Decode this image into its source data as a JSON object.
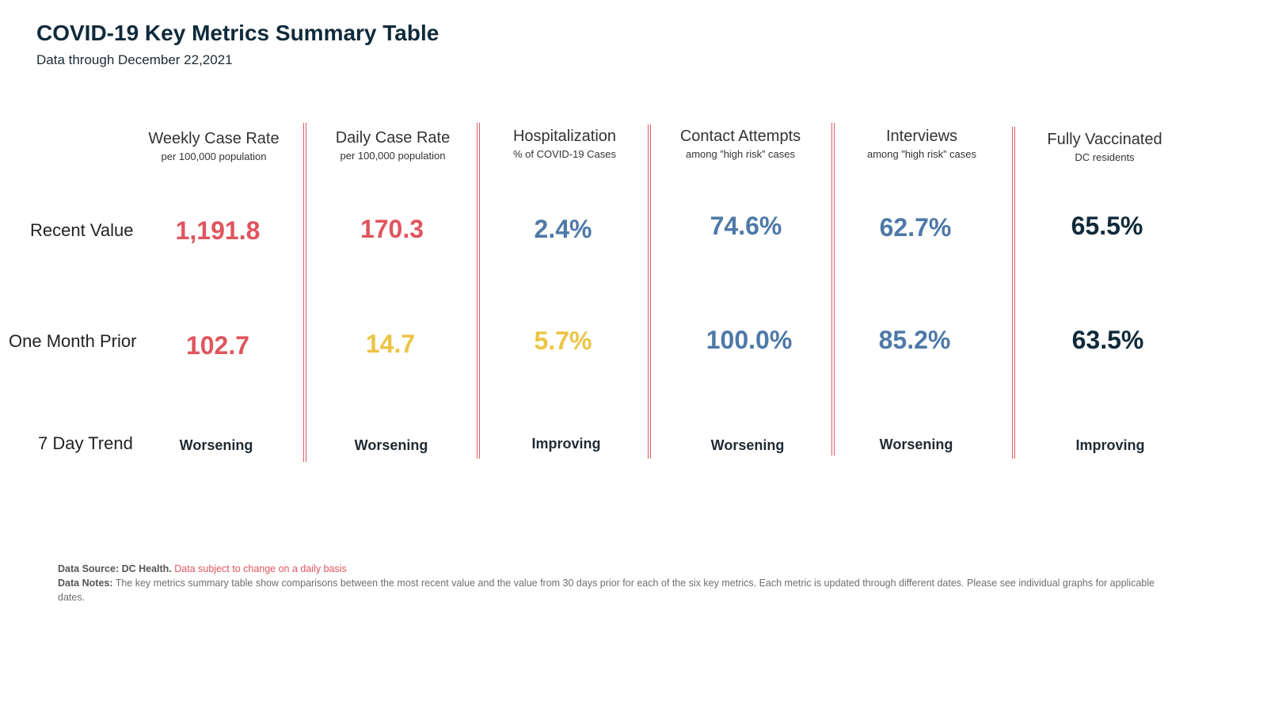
{
  "header": {
    "title": "COVID-19 Key Metrics Summary Table",
    "subtitle": "Data through December 22,2021"
  },
  "rows": {
    "recent": "Recent Value",
    "prior": "One Month Prior",
    "trend": "7 Day Trend"
  },
  "columns": [
    {
      "title": "Weekly Case Rate",
      "subtitle": "per 100,000 population",
      "recent": "1,191.8",
      "prior": "102.7",
      "trend": "Worsening",
      "recent_color": "#e0555e",
      "prior_color": "#e0555e"
    },
    {
      "title": "Daily Case Rate",
      "subtitle": "per 100,000 population",
      "recent": "170.3",
      "prior": "14.7",
      "trend": "Worsening",
      "recent_color": "#e0555e",
      "prior_color": "#ecc445"
    },
    {
      "title": "Hospitalization",
      "subtitle": "% of COVID-19 Cases",
      "recent": "2.4%",
      "prior": "5.7%",
      "trend": "Improving",
      "recent_color": "#4e79a7",
      "prior_color": "#ecc445"
    },
    {
      "title": "Contact Attempts",
      "subtitle": "among ”high risk” cases",
      "recent": "74.6%",
      "prior": "100.0%",
      "trend": "Worsening",
      "recent_color": "#4e79a7",
      "prior_color": "#4e79a7"
    },
    {
      "title": "Interviews",
      "subtitle": "among ”high risk” cases",
      "recent": "62.7%",
      "prior": "85.2%",
      "trend": "Worsening",
      "recent_color": "#4e79a7",
      "prior_color": "#4e79a7"
    },
    {
      "title": "Fully Vaccinated",
      "subtitle": "DC residents",
      "recent": "65.5%",
      "prior": "63.5%",
      "trend": "Improving",
      "recent_color": "#0f2a3a",
      "prior_color": "#0f2a3a"
    }
  ],
  "footer": {
    "source_label": "Data Source: DC Health.",
    "source_note": "Data subject to change on a daily basis",
    "notes_label": "Data Notes:",
    "notes_text": "The key metrics summary table show comparisons between the most recent value and the value from 30 days prior for each of the six key metrics. Each metric is updated through different dates. Please see individual graphs for applicable dates."
  },
  "colors": {
    "divider": "#e05b63",
    "title": "#0f2a3a",
    "worse_red": "#e0555e",
    "caution_yellow": "#ecc445",
    "neutral_blue": "#4e79a7"
  }
}
